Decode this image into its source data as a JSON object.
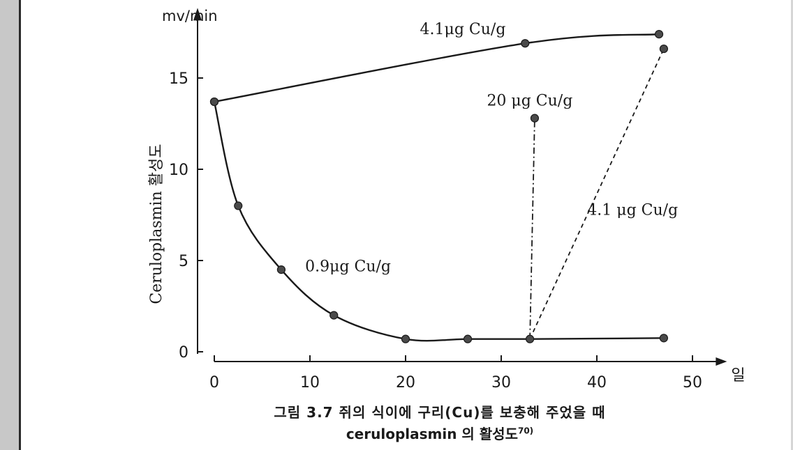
{
  "chart_data": {
    "type": "line",
    "ylabel": "Ceruloplasmin 활성도",
    "y_unit": "mv/min",
    "x_unit": "일",
    "xlim": [
      0,
      52
    ],
    "ylim": [
      0,
      18
    ],
    "x_ticks": [
      0,
      10,
      20,
      30,
      40,
      50
    ],
    "y_ticks": [
      0,
      5,
      10,
      15
    ],
    "grid": false,
    "series": [
      {
        "name": "0.9μg Cu/g",
        "style": "solid",
        "x": [
          0,
          2.5,
          7,
          12.5,
          20,
          26.5,
          33,
          47
        ],
        "y": [
          13.7,
          8.0,
          4.5,
          2.0,
          0.7,
          0.7,
          0.7,
          0.75
        ]
      },
      {
        "name": "4.1μg Cu/g",
        "style": "solid",
        "x": [
          0,
          32.5,
          46.5
        ],
        "y": [
          13.7,
          16.9,
          17.4
        ]
      },
      {
        "name": "20 μg Cu/g",
        "style": "dash-dot",
        "x": [
          33,
          33.5
        ],
        "y": [
          0.7,
          12.8
        ]
      },
      {
        "name": "4.1 μg Cu/g",
        "style": "dashed",
        "x": [
          33,
          47
        ],
        "y": [
          0.7,
          16.6
        ]
      }
    ],
    "annotations": [
      {
        "text": "4.1μg Cu/g",
        "x": 21.5,
        "y": 17.4
      },
      {
        "text": "20 μg Cu/g",
        "x": 28.5,
        "y": 13.5
      },
      {
        "text": "4.1 μg Cu/g",
        "x": 39,
        "y": 7.5
      },
      {
        "text": "0.9μg Cu/g",
        "x": 9.5,
        "y": 4.4
      }
    ]
  },
  "caption": {
    "line1": "그림 3.7  쥐의 식이에 구리(Cu)를 보충해 주었을 때",
    "line2": "ceruloplasmin 의 활성도",
    "ref": "70)"
  }
}
